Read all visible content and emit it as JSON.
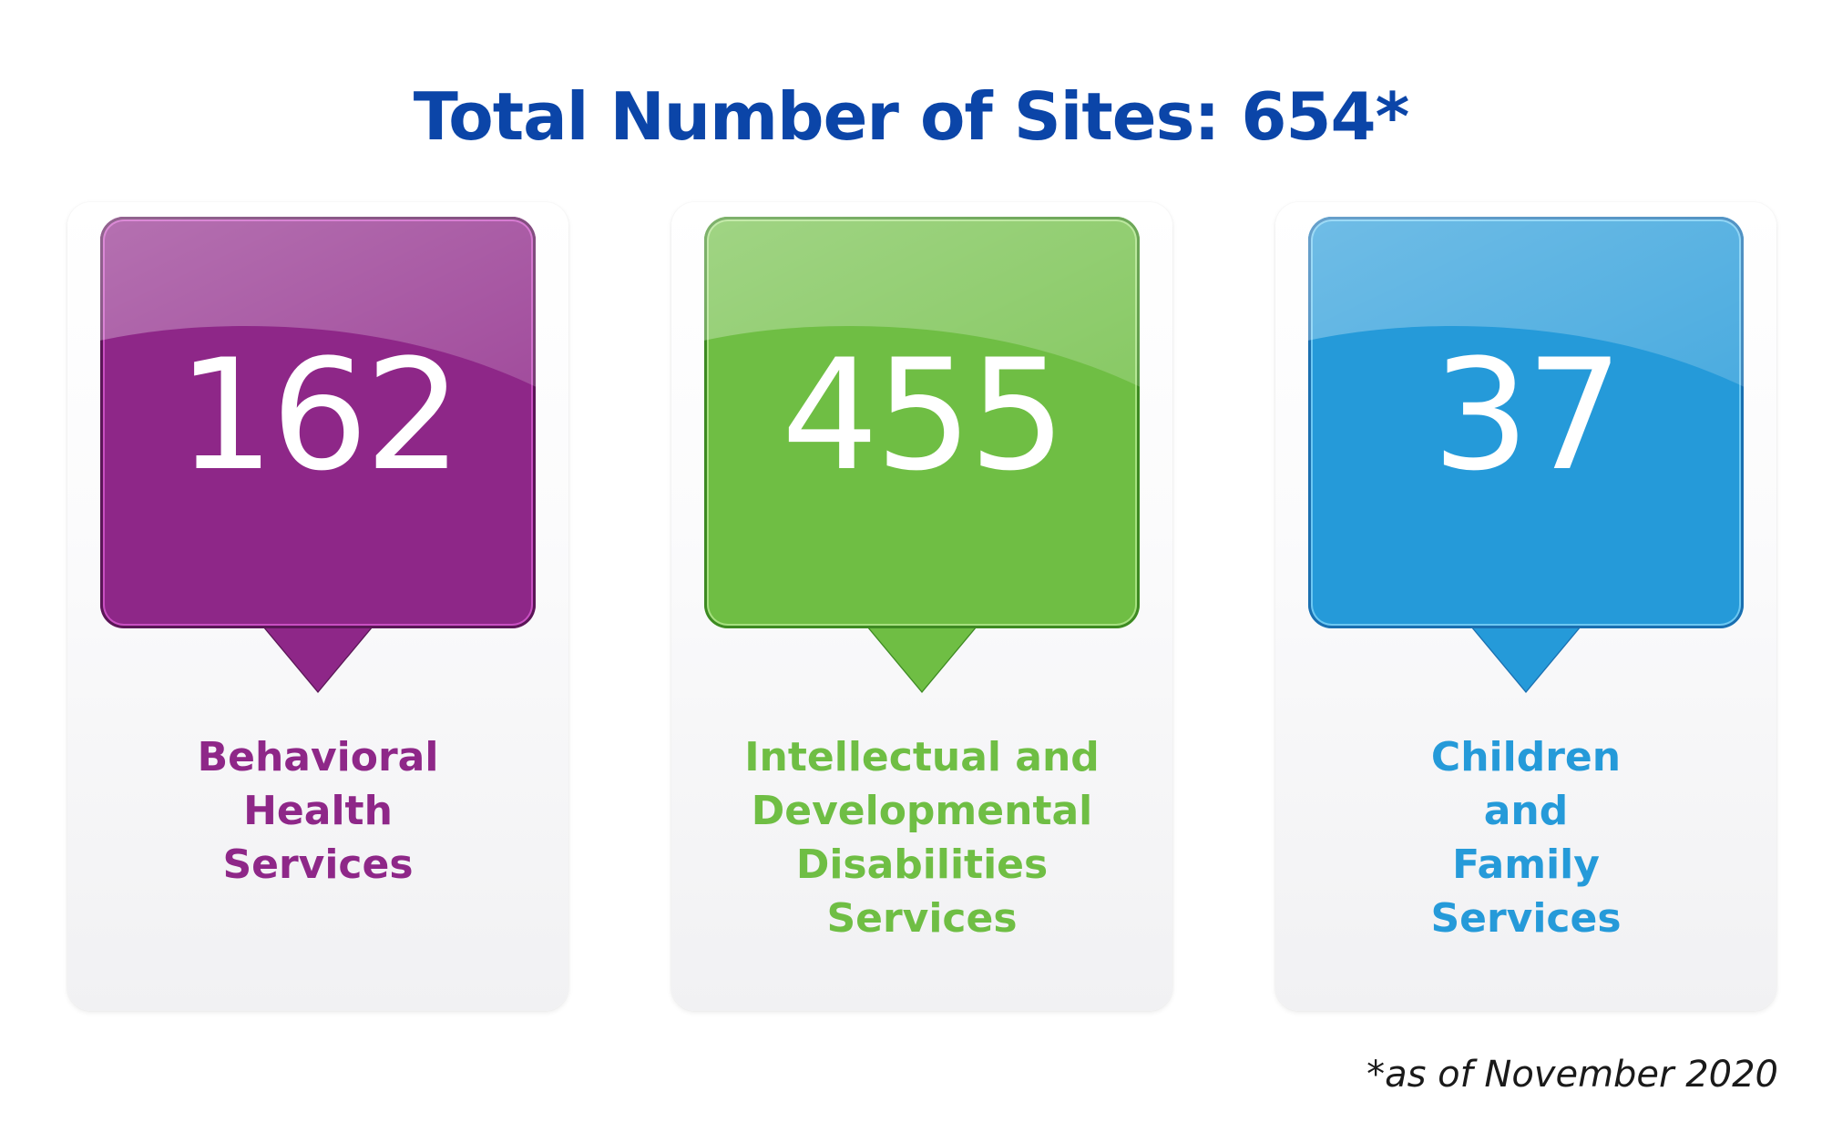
{
  "title": "Total Number of Sites: 654*",
  "cards": [
    {
      "value": "162",
      "label_lines": [
        "Behavioral",
        "Health",
        "Services"
      ],
      "color": "#8e2788",
      "border_color": "#5a1656",
      "text_color": "#8e2788"
    },
    {
      "value": "455",
      "label_lines": [
        "Intellectual and",
        "Developmental",
        "Disabilities",
        "Services"
      ],
      "color": "#6fbe44",
      "border_color": "#3d8a22",
      "text_color": "#6fbe44"
    },
    {
      "value": "37",
      "label_lines": [
        "Children",
        "and",
        "Family",
        "Services"
      ],
      "color": "#259ad9",
      "border_color": "#1a6fb0",
      "text_color": "#259ad9"
    }
  ],
  "footnote": "*as of November 2020"
}
